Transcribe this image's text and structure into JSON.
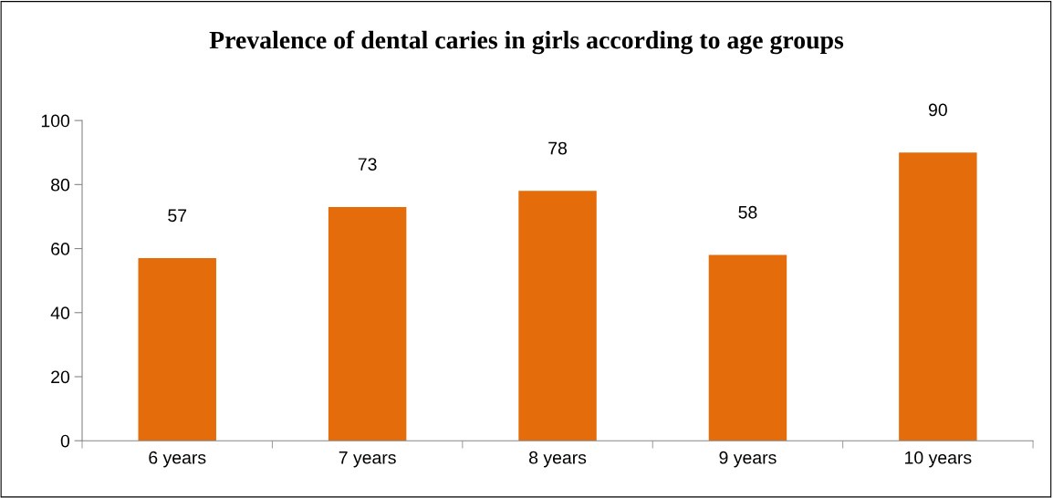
{
  "chart_data": {
    "type": "bar",
    "title": "Prevalence of dental caries in girls according to age groups",
    "categories": [
      "6 years",
      "7 years",
      "8 years",
      "9 years",
      "10 years"
    ],
    "values": [
      57,
      73,
      78,
      58,
      90
    ],
    "color": "#e46c0a",
    "ylim": [
      0,
      100
    ],
    "yticks": [
      0,
      20,
      40,
      60,
      80,
      100
    ],
    "grid": false,
    "data_labels": true,
    "legend": false
  }
}
